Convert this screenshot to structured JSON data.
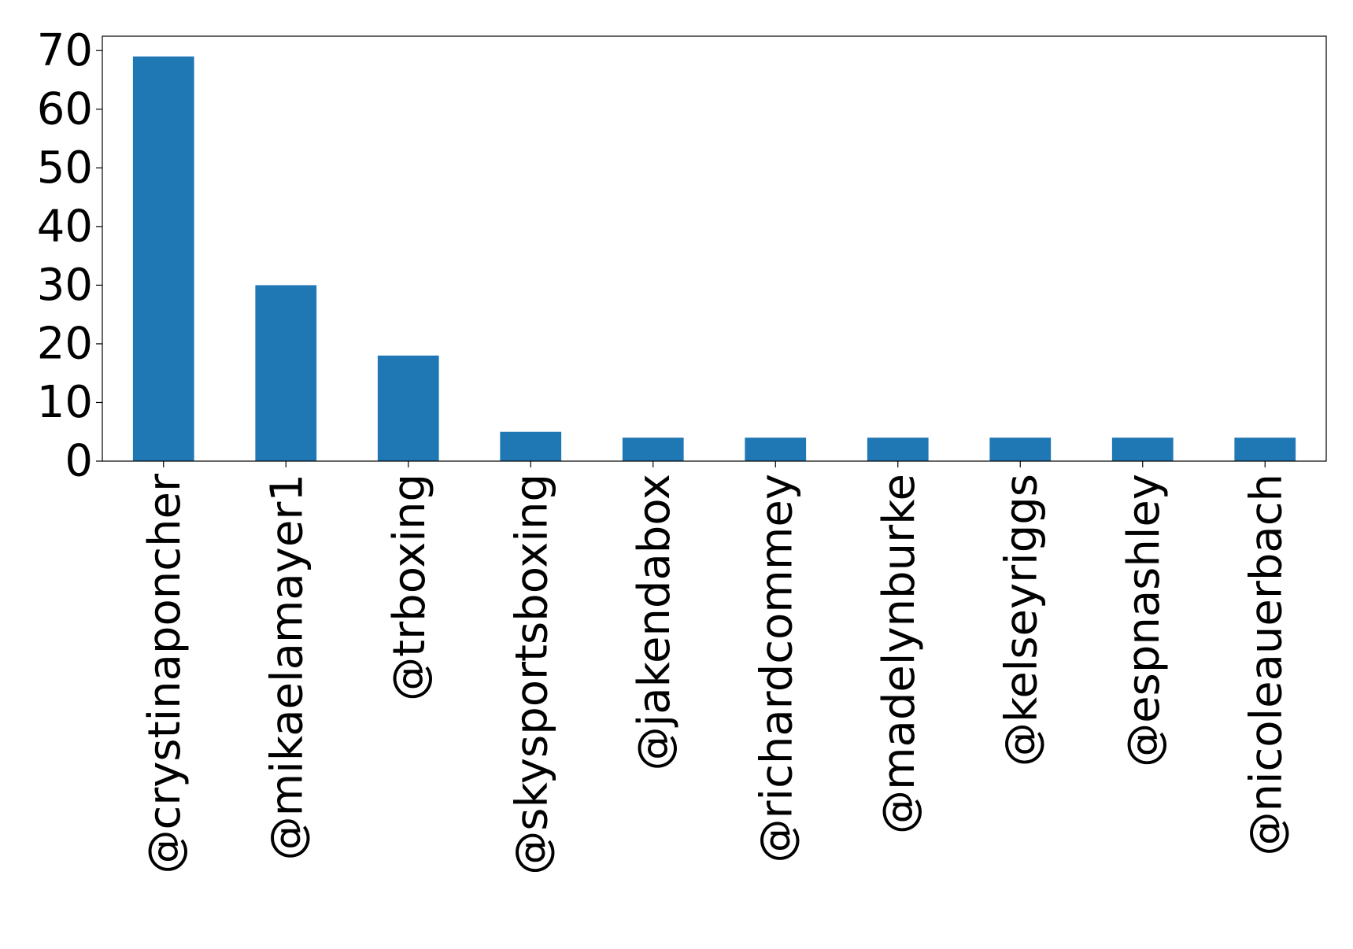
{
  "chart_data": {
    "type": "bar",
    "title": "",
    "xlabel": "",
    "ylabel": "",
    "categories": [
      "@crystinaponcher",
      "@mikaelamayer1",
      "@trboxing",
      "@skysportsboxing",
      "@jakendabox",
      "@richardcommey",
      "@madelynburke",
      "@kelseyriggs",
      "@espnashley",
      "@nicoleauerbach"
    ],
    "values": [
      69,
      30,
      18,
      5,
      4,
      4,
      4,
      4,
      4,
      4
    ],
    "ylim": [
      0,
      72.45
    ],
    "yticks": [
      0,
      10,
      20,
      30,
      40,
      50,
      60,
      70
    ],
    "grid": false,
    "legend": "none",
    "colors": {
      "bar": "#1f77b4",
      "axis": "#000000",
      "background": "#ffffff"
    }
  }
}
